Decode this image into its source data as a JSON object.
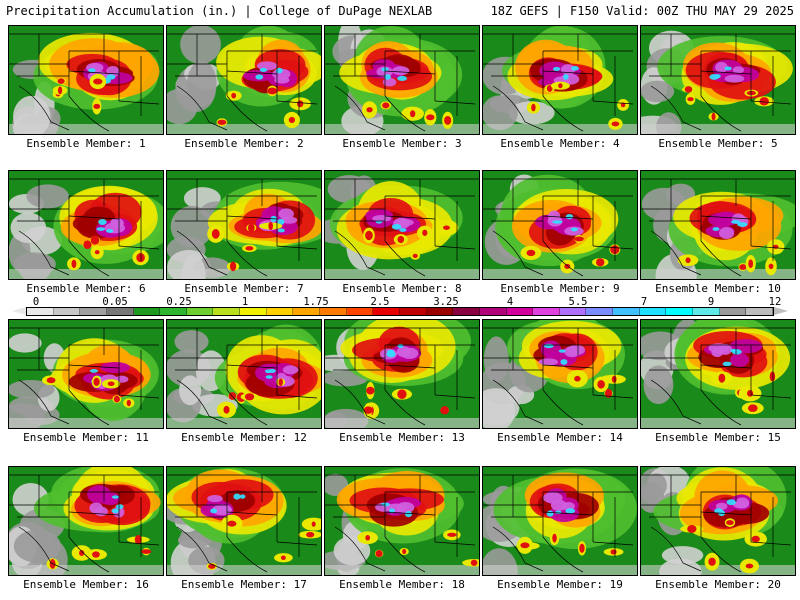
{
  "header": {
    "title_left": "Precipitation Accumulation (in.) | College of DuPage NEXLAB",
    "title_right": "18Z GEFS | F150 Valid: 00Z THU MAY 29 2025"
  },
  "panels": [
    {
      "label": "Ensemble Member: 1"
    },
    {
      "label": "Ensemble Member: 2"
    },
    {
      "label": "Ensemble Member: 3"
    },
    {
      "label": "Ensemble Member: 4"
    },
    {
      "label": "Ensemble Member: 5"
    },
    {
      "label": "Ensemble Member: 6"
    },
    {
      "label": "Ensemble Member: 7"
    },
    {
      "label": "Ensemble Member: 8"
    },
    {
      "label": "Ensemble Member: 9"
    },
    {
      "label": "Ensemble Member: 10"
    },
    {
      "label": "Ensemble Member: 11"
    },
    {
      "label": "Ensemble Member: 12"
    },
    {
      "label": "Ensemble Member: 13"
    },
    {
      "label": "Ensemble Member: 14"
    },
    {
      "label": "Ensemble Member: 15"
    },
    {
      "label": "Ensemble Member: 16"
    },
    {
      "label": "Ensemble Member: 17"
    },
    {
      "label": "Ensemble Member: 18"
    },
    {
      "label": "Ensemble Member: 19"
    },
    {
      "label": "Ensemble Member: 20"
    }
  ],
  "colorbar": {
    "tick_labels": [
      "0",
      "0.05",
      "0.25",
      "1",
      "1.75",
      "2.5",
      "3.25",
      "4",
      "5.5",
      "7",
      "9",
      "12"
    ],
    "colors": [
      "#e8e8e8",
      "#c8c8c8",
      "#a0a0a0",
      "#787878",
      "#1e9b1e",
      "#2fb52f",
      "#6fcf2f",
      "#b8e01e",
      "#f0f000",
      "#ffd000",
      "#ffa500",
      "#ff7a00",
      "#ff4500",
      "#e60000",
      "#c00000",
      "#9a0000",
      "#8b0040",
      "#b0007a",
      "#d4009e",
      "#e040e0",
      "#b070ff",
      "#7a8cff",
      "#40c0ff",
      "#20e0ff",
      "#00ffff",
      "#60e8e8",
      "#9a9a9a",
      "#bdbdbd"
    ],
    "under_color": "#e8e8e8",
    "over_color": "#bdbdbd"
  },
  "map_colors": {
    "land_green": "#1a8a1a",
    "light_green": "#4fbf2f",
    "yellow": "#e8e800",
    "orange": "#ffa500",
    "red": "#e01010",
    "dark_red": "#a00000",
    "magenta": "#c000a0",
    "violet": "#d060e0",
    "cyan": "#30e0ff",
    "gray": "#9a9a9a",
    "light_gray": "#d0d0d0",
    "border_line": "#000000"
  }
}
